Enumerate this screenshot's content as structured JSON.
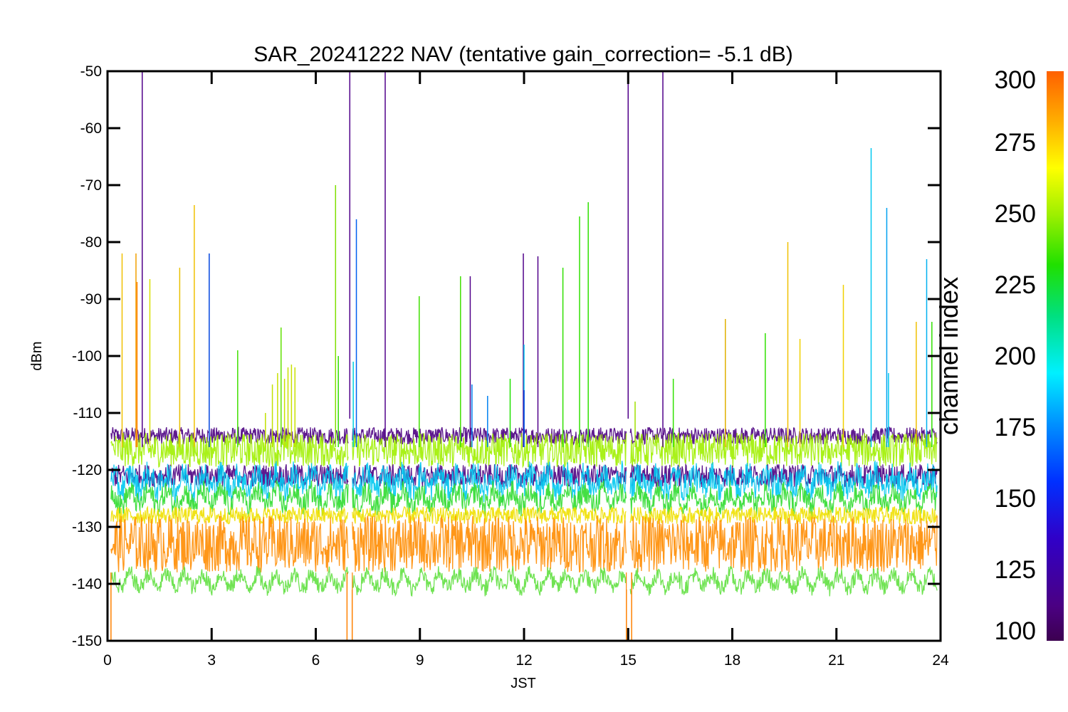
{
  "chart_data": {
    "type": "line",
    "title": "SAR_20241222 NAV (tentative gain_correction= -5.1 dB)",
    "xlabel": "JST",
    "ylabel": "dBm",
    "xlim": [
      0,
      24
    ],
    "ylim": [
      -150,
      -50
    ],
    "x_ticks": [
      "0",
      "3",
      "6",
      "9",
      "12",
      "15",
      "18",
      "21",
      "24"
    ],
    "y_ticks": [
      "-50",
      "-60",
      "-70",
      "-80",
      "-90",
      "-100",
      "-110",
      "-120",
      "-130",
      "-140",
      "-150"
    ],
    "grid": false,
    "colorbar": {
      "title": "channel index",
      "range": [
        100,
        300
      ],
      "ticks": [
        "100",
        "125",
        "150",
        "175",
        "200",
        "225",
        "250",
        "275",
        "300"
      ],
      "colormap": "rainbow"
    },
    "series": [
      {
        "channel_index": 110,
        "color": "#4b0082",
        "x": [
          0,
          24
        ],
        "y_mean": -114,
        "y_spread": 1.5
      },
      {
        "channel_index": 245,
        "color": "#a0f000",
        "x": [
          0,
          24
        ],
        "y_mean": -116.5,
        "y_spread": 3
      },
      {
        "channel_index": 110,
        "color": "#4b0082",
        "x": [
          0,
          24
        ],
        "y_mean": -121,
        "y_spread": 2
      },
      {
        "channel_index": 170,
        "color": "#00c8f0",
        "x": [
          0,
          24
        ],
        "y_mean": -122,
        "y_spread": 2.5
      },
      {
        "channel_index": 230,
        "color": "#30dc30",
        "x": [
          0,
          24
        ],
        "y_mean": -125,
        "y_spread": 2
      },
      {
        "channel_index": 270,
        "color": "#f0e000",
        "x": [
          0,
          24
        ],
        "y_mean": -128,
        "y_spread": 1.5
      },
      {
        "channel_index": 290,
        "color": "#ff8c00",
        "x": [
          0,
          24
        ],
        "y_mean": -133,
        "y_spread": 5
      },
      {
        "channel_index": 230,
        "color": "#60e040",
        "x": [
          0,
          24
        ],
        "y_mean": -139.5,
        "y_spread": 1.5
      }
    ],
    "spikes": [
      {
        "x": 0.42,
        "y": -82,
        "color": "#f0c000"
      },
      {
        "x": 0.82,
        "y": -82,
        "color": "#f0a000"
      },
      {
        "x": 0.85,
        "y": -87,
        "color": "#ff8000"
      },
      {
        "x": 1.0,
        "y": -50,
        "color": "#50008a"
      },
      {
        "x": 1.22,
        "y": -86.5,
        "color": "#d8e000"
      },
      {
        "x": 2.08,
        "y": -84.5,
        "color": "#e8c000"
      },
      {
        "x": 2.5,
        "y": -73.5,
        "color": "#f0c000"
      },
      {
        "x": 2.93,
        "y": -82,
        "color": "#0044e0"
      },
      {
        "x": 3.75,
        "y": -99,
        "color": "#40e000"
      },
      {
        "x": 4.55,
        "y": -110,
        "color": "#c0e000"
      },
      {
        "x": 4.75,
        "y": -105,
        "color": "#c0e000"
      },
      {
        "x": 4.9,
        "y": -103,
        "color": "#c8e000"
      },
      {
        "x": 5.0,
        "y": -95,
        "color": "#60e000"
      },
      {
        "x": 5.1,
        "y": -104,
        "color": "#c8e000"
      },
      {
        "x": 5.2,
        "y": -102,
        "color": "#c8e000"
      },
      {
        "x": 5.3,
        "y": -101.5,
        "color": "#c8e000"
      },
      {
        "x": 5.4,
        "y": -102,
        "color": "#c8e000"
      },
      {
        "x": 6.57,
        "y": -70,
        "color": "#80e000"
      },
      {
        "x": 6.65,
        "y": -100,
        "color": "#30e000"
      },
      {
        "x": 6.98,
        "y": -50,
        "color": "#50008a"
      },
      {
        "x": 7.08,
        "y": -101,
        "color": "#00d0e0"
      },
      {
        "x": 7.17,
        "y": -76,
        "color": "#0060f0"
      },
      {
        "x": 8.0,
        "y": -50,
        "color": "#50008a"
      },
      {
        "x": 8.98,
        "y": -89.5,
        "color": "#40e000"
      },
      {
        "x": 10.17,
        "y": -86,
        "color": "#40e000"
      },
      {
        "x": 10.45,
        "y": -86,
        "color": "#50008a"
      },
      {
        "x": 10.5,
        "y": -105,
        "color": "#0080f0"
      },
      {
        "x": 10.95,
        "y": -107,
        "color": "#0080f0"
      },
      {
        "x": 11.6,
        "y": -104,
        "color": "#20e000"
      },
      {
        "x": 11.98,
        "y": -82,
        "color": "#50008a"
      },
      {
        "x": 12.0,
        "y": -98,
        "color": "#00c8f0"
      },
      {
        "x": 12.0,
        "y": -106,
        "color": "#0040e0"
      },
      {
        "x": 12.4,
        "y": -82.5,
        "color": "#50008a"
      },
      {
        "x": 13.12,
        "y": -84.5,
        "color": "#30e000"
      },
      {
        "x": 13.6,
        "y": -75.5,
        "color": "#30e000"
      },
      {
        "x": 13.85,
        "y": -73,
        "color": "#30e000"
      },
      {
        "x": 15.0,
        "y": -50,
        "color": "#50008a"
      },
      {
        "x": 15.2,
        "y": -108,
        "color": "#a0e000"
      },
      {
        "x": 16.0,
        "y": -50,
        "color": "#50008a"
      },
      {
        "x": 16.3,
        "y": -104,
        "color": "#30e000"
      },
      {
        "x": 17.8,
        "y": -93.5,
        "color": "#e0b000"
      },
      {
        "x": 18.95,
        "y": -96,
        "color": "#30e000"
      },
      {
        "x": 19.6,
        "y": -80,
        "color": "#f0c000"
      },
      {
        "x": 19.95,
        "y": -97,
        "color": "#f0d000"
      },
      {
        "x": 21.2,
        "y": -87.5,
        "color": "#f0d000"
      },
      {
        "x": 22.0,
        "y": -63.5,
        "color": "#00c8f0"
      },
      {
        "x": 22.45,
        "y": -74,
        "color": "#00a0f0"
      },
      {
        "x": 22.5,
        "y": -103,
        "color": "#00c8f0"
      },
      {
        "x": 23.3,
        "y": -94,
        "color": "#f0c000"
      },
      {
        "x": 23.6,
        "y": -83,
        "color": "#00b0f0"
      },
      {
        "x": 23.75,
        "y": -94,
        "color": "#30e000"
      }
    ],
    "gaps": [
      7.0,
      15.0
    ],
    "gap_dips": [
      {
        "x": 0.1,
        "y": -150,
        "color": "#ff8000"
      },
      {
        "x": 6.9,
        "y": -150,
        "color": "#ff8000"
      },
      {
        "x": 7.05,
        "y": -150,
        "color": "#ff8000"
      },
      {
        "x": 14.95,
        "y": -150,
        "color": "#ff8000"
      },
      {
        "x": 15.1,
        "y": -150,
        "color": "#ff8000"
      }
    ]
  }
}
